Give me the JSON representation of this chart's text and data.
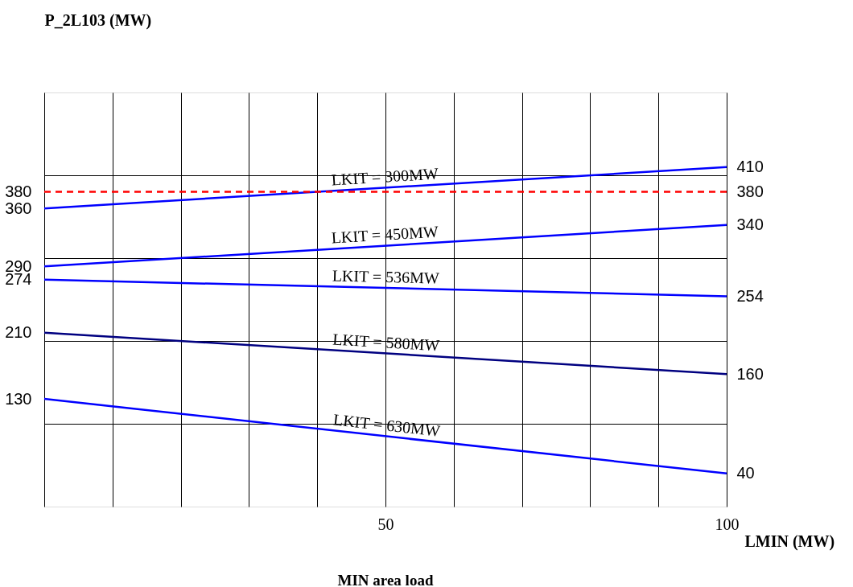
{
  "chart_data": {
    "type": "line",
    "ylabel": "P_2L103 (MW)",
    "xlabel": "LMIN (MW)",
    "annotations": [
      "MIN area load"
    ],
    "xlim": [
      0,
      100
    ],
    "ylim": [
      0,
      500
    ],
    "y2lim": [
      0,
      500
    ],
    "xticks": [
      {
        "value": 0,
        "label": null
      },
      {
        "value": 10,
        "label": null
      },
      {
        "value": 20,
        "label": null
      },
      {
        "value": 30,
        "label": null
      },
      {
        "value": 40,
        "label": null
      },
      50,
      {
        "value": 60,
        "label": null
      },
      {
        "value": 70,
        "label": null
      },
      {
        "value": 80,
        "label": null
      },
      {
        "value": 90,
        "label": null
      },
      100
    ],
    "yticks": [
      {
        "value": 100,
        "label": null
      },
      130,
      {
        "value": 200,
        "label": null
      },
      210,
      274,
      290,
      {
        "value": 300,
        "label": null
      },
      360,
      380,
      {
        "value": 400,
        "label": null
      }
    ],
    "y2ticks": [
      40,
      160,
      254,
      340,
      380,
      410
    ],
    "grid": true,
    "marker": "none",
    "line_style": "solid",
    "x": [
      0,
      100
    ],
    "ref_lines": [
      {
        "axis": "y",
        "value": 380,
        "color": "#ff0000",
        "line_style": "dashed"
      }
    ],
    "series": [
      {
        "name": "LKIT = 300MW",
        "color": "#0000ff",
        "values": [
          360,
          410
        ]
      },
      {
        "name": "LKIT = 450MW",
        "color": "#0000ff",
        "values": [
          290,
          340
        ]
      },
      {
        "name": "LKIT = 536MW",
        "color": "#0000ff",
        "values": [
          274,
          254
        ]
      },
      {
        "name": "LKIT = 580MW",
        "color": "#000080",
        "values": [
          210,
          160
        ]
      },
      {
        "name": "LKIT = 630MW",
        "color": "#0000ff",
        "values": [
          130,
          40
        ]
      }
    ]
  }
}
